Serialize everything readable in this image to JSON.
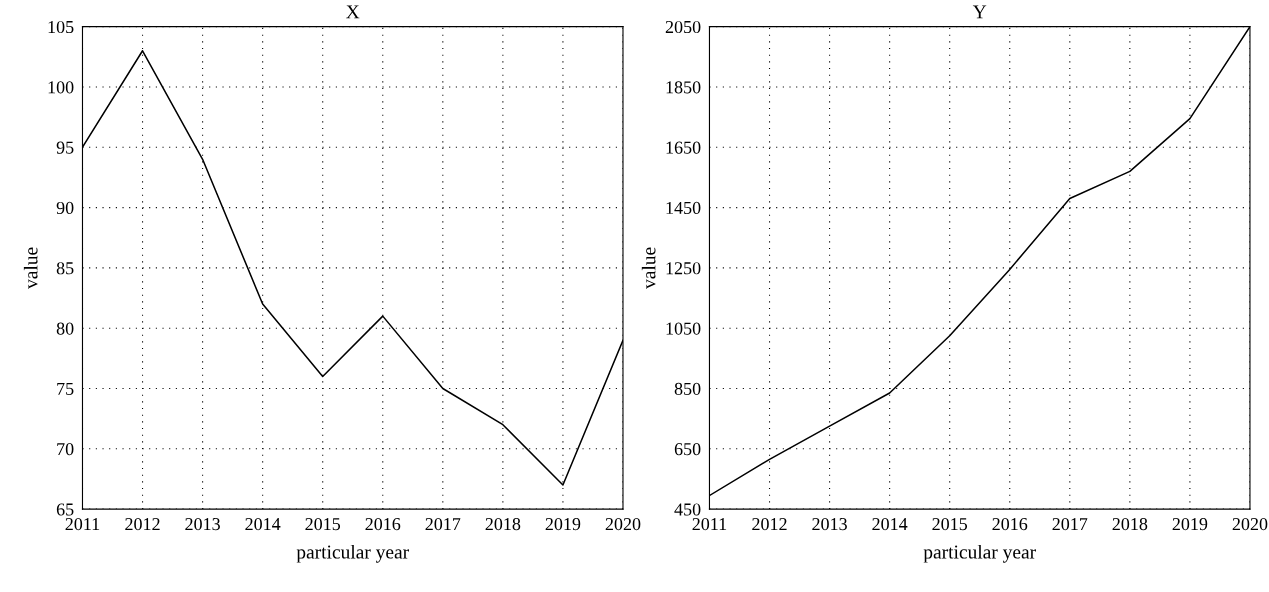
{
  "chart_data": [
    {
      "type": "line",
      "title": "X",
      "xlabel": "particular year",
      "ylabel": "value",
      "x": [
        2011,
        2012,
        2013,
        2014,
        2015,
        2016,
        2017,
        2018,
        2019,
        2020
      ],
      "series": [
        {
          "color": "#000000",
          "values": [
            95,
            103,
            94,
            82,
            76,
            81,
            75,
            72,
            67,
            79
          ]
        }
      ],
      "xlim": [
        2011,
        2020
      ],
      "xticks": [
        2011,
        2012,
        2013,
        2014,
        2015,
        2016,
        2017,
        2018,
        2019,
        2020
      ],
      "ylim": [
        65,
        105
      ],
      "yticks": [
        65,
        70,
        75,
        80,
        85,
        90,
        95,
        100,
        105
      ],
      "grid": true,
      "line_style": "solid",
      "marker": "none"
    },
    {
      "type": "line",
      "title": "Y",
      "xlabel": "particular year",
      "ylabel": "value",
      "x": [
        2011,
        2012,
        2013,
        2014,
        2015,
        2016,
        2017,
        2018,
        2019,
        2020
      ],
      "series": [
        {
          "color": "#000000",
          "values": [
            495,
            615,
            725,
            835,
            1025,
            1245,
            1480,
            1570,
            1745,
            2050
          ]
        }
      ],
      "xlim": [
        2011,
        2020
      ],
      "xticks": [
        2011,
        2012,
        2013,
        2014,
        2015,
        2016,
        2017,
        2018,
        2019,
        2020
      ],
      "ylim": [
        450,
        2050
      ],
      "yticks": [
        450,
        650,
        850,
        1050,
        1250,
        1450,
        1650,
        1850,
        2050
      ],
      "grid": true,
      "line_style": "solid",
      "marker": "none"
    }
  ]
}
